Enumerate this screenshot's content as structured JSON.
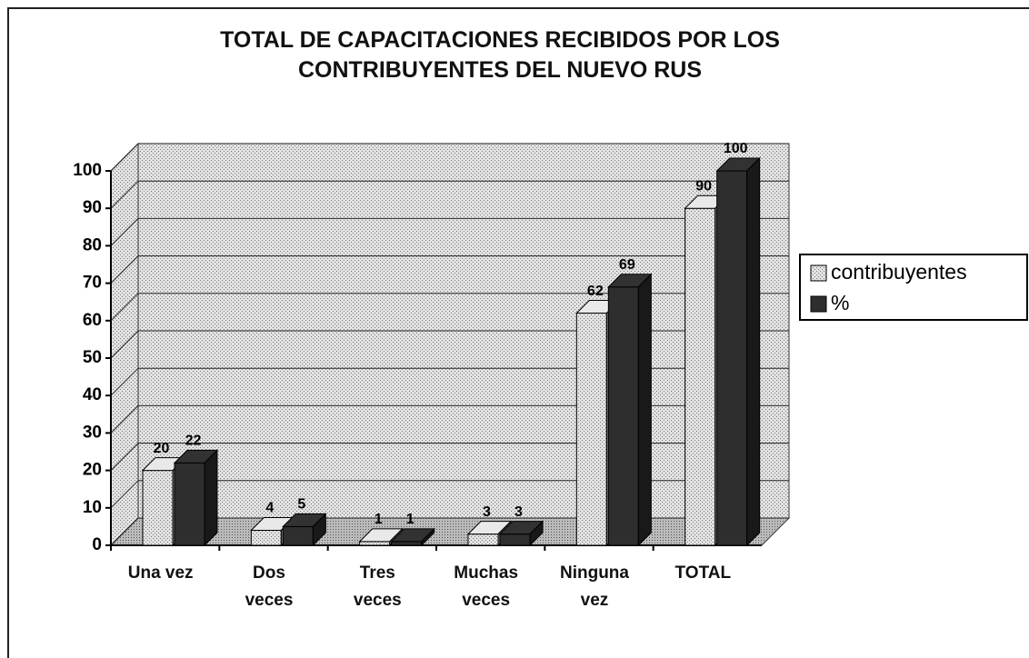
{
  "chart_data": {
    "type": "bar3d",
    "title": "TOTAL DE CAPACITACIONES RECIBIDOS POR LOS\nCONTRIBUYENTES  DEL  NUEVO  RUS",
    "categories": [
      "Una vez",
      "Dos\nveces",
      "Tres\nveces",
      "Muchas\nveces",
      "Ninguna\nvez",
      "TOTAL"
    ],
    "series": [
      {
        "name": "contribuyentes",
        "color": "#d8d8d8",
        "values": [
          20,
          4,
          1,
          3,
          62,
          90
        ]
      },
      {
        "name": "%",
        "color": "#2e2e2e",
        "values": [
          22,
          5,
          1,
          3,
          69,
          100
        ]
      }
    ],
    "ylim": [
      0,
      100
    ],
    "yticks": [
      0,
      10,
      20,
      30,
      40,
      50,
      60,
      70,
      80,
      90,
      100
    ],
    "grid": true,
    "legend": "right"
  }
}
